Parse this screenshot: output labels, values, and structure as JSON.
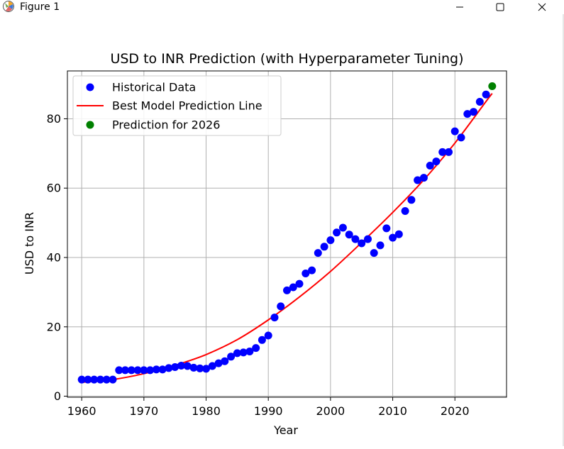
{
  "window": {
    "title": "Figure 1",
    "icon": "matplotlib-icon",
    "controls": [
      "minimize-icon",
      "maximize-icon",
      "close-icon"
    ]
  },
  "chart_data": {
    "type": "scatter",
    "title": "USD to INR Prediction (with Hyperparameter Tuning)",
    "xlabel": "Year",
    "ylabel": "USD to INR",
    "xlim": [
      1957.7,
      2028.3
    ],
    "ylim": [
      -0.3,
      93.8
    ],
    "xticks": [
      1960,
      1970,
      1980,
      1990,
      2000,
      2010,
      2020
    ],
    "yticks": [
      0,
      20,
      40,
      60,
      80
    ],
    "grid": true,
    "legend_position": "top-left",
    "series": [
      {
        "name": "Historical Data",
        "kind": "scatter",
        "color": "#0000ff",
        "x": [
          1960,
          1961,
          1962,
          1963,
          1964,
          1965,
          1966,
          1967,
          1968,
          1969,
          1970,
          1971,
          1972,
          1973,
          1974,
          1975,
          1976,
          1977,
          1978,
          1979,
          1980,
          1981,
          1982,
          1983,
          1984,
          1985,
          1986,
          1987,
          1988,
          1989,
          1990,
          1991,
          1992,
          1993,
          1994,
          1995,
          1996,
          1997,
          1998,
          1999,
          2000,
          2001,
          2002,
          2003,
          2004,
          2005,
          2006,
          2007,
          2008,
          2009,
          2010,
          2011,
          2012,
          2013,
          2014,
          2015,
          2016,
          2017,
          2018,
          2019,
          2020,
          2021,
          2022,
          2023,
          2024,
          2025
        ],
        "y": [
          4.8,
          4.8,
          4.8,
          4.8,
          4.8,
          4.8,
          7.5,
          7.5,
          7.5,
          7.5,
          7.5,
          7.5,
          7.7,
          7.7,
          8.1,
          8.4,
          8.8,
          8.7,
          8.2,
          8.0,
          7.9,
          8.7,
          9.5,
          10.1,
          11.4,
          12.4,
          12.6,
          12.9,
          13.9,
          16.2,
          17.5,
          22.7,
          25.9,
          30.5,
          31.4,
          32.4,
          35.4,
          36.3,
          41.3,
          43.1,
          45.0,
          47.2,
          48.6,
          46.6,
          45.3,
          44.1,
          45.3,
          41.3,
          43.5,
          48.4,
          45.7,
          46.7,
          53.4,
          56.6,
          62.3,
          63.0,
          66.5,
          67.7,
          70.4,
          70.4,
          76.4,
          74.6,
          81.4,
          82.0,
          84.9,
          87.0
        ]
      },
      {
        "name": "Best Model Prediction Line",
        "kind": "line",
        "color": "#ff0000",
        "x": [
          1960,
          1965,
          1970,
          1975,
          1980,
          1985,
          1990,
          1995,
          2000,
          2005,
          2010,
          2015,
          2020,
          2025,
          2026
        ],
        "y": [
          4.0,
          4.8,
          6.5,
          8.9,
          12.0,
          16.3,
          22.0,
          28.6,
          36.0,
          44.3,
          53.0,
          62.4,
          73.0,
          85.0,
          87.3
        ]
      },
      {
        "name": "Prediction for 2026",
        "kind": "scatter",
        "color": "#008000",
        "x": [
          2026
        ],
        "y": [
          89.4
        ]
      }
    ]
  }
}
